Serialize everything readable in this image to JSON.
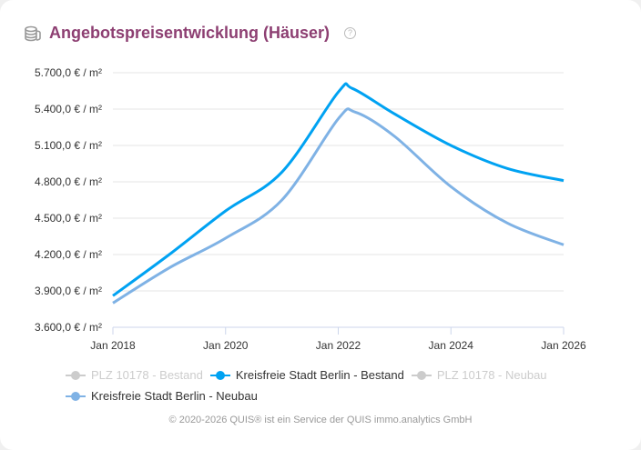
{
  "header": {
    "title": "Angebotspreisentwicklung (Häuser)",
    "icon": "coins-icon",
    "help_icon": "question-circle-icon"
  },
  "chart_data": {
    "type": "line",
    "title": "Angebotspreisentwicklung (Häuser)",
    "ylim": [
      3600,
      5700
    ],
    "y_ticks": [
      "3.600,0 € / m²",
      "3.900,0 € / m²",
      "4.200,0 € / m²",
      "4.500,0 € / m²",
      "4.800,0 € / m²",
      "5.100,0 € / m²",
      "5.400,0 € / m²",
      "5.700,0 € / m²"
    ],
    "y_tick_values": [
      3600,
      3900,
      4200,
      4500,
      4800,
      5100,
      5400,
      5700
    ],
    "x_ticks": [
      "Jan 2018",
      "Jan 2020",
      "Jan 2022",
      "Jan 2024",
      "Jan 2026"
    ],
    "x_tick_values": [
      2018,
      2020,
      2022,
      2024,
      2026
    ],
    "xlim": [
      2018,
      2026
    ],
    "grid": true,
    "legend_position": "bottom",
    "series": [
      {
        "name": "PLZ 10178 - Bestand",
        "color": "#cccccc",
        "hidden": true,
        "x": [],
        "y": []
      },
      {
        "name": "Kreisfreie Stadt Berlin - Bestand",
        "color": "#00a2f2",
        "hidden": false,
        "x": [
          2018,
          2019,
          2020,
          2021,
          2022,
          2022.25,
          2023,
          2024,
          2025,
          2026
        ],
        "y": [
          3860,
          4200,
          4560,
          4880,
          5540,
          5570,
          5360,
          5100,
          4910,
          4810
        ]
      },
      {
        "name": "PLZ 10178 - Neubau",
        "color": "#cccccc",
        "hidden": true,
        "x": [],
        "y": []
      },
      {
        "name": "Kreisfreie Stadt Berlin - Neubau",
        "color": "#7fb2e5",
        "hidden": false,
        "x": [
          2018,
          2019,
          2020,
          2021,
          2022,
          2022.3,
          2023,
          2024,
          2025,
          2026
        ],
        "y": [
          3800,
          4090,
          4335,
          4650,
          5320,
          5375,
          5175,
          4760,
          4460,
          4280
        ]
      }
    ]
  },
  "footer": {
    "text": "© 2020-2026 QUIS® ist ein Service der QUIS immo.analytics GmbH"
  }
}
